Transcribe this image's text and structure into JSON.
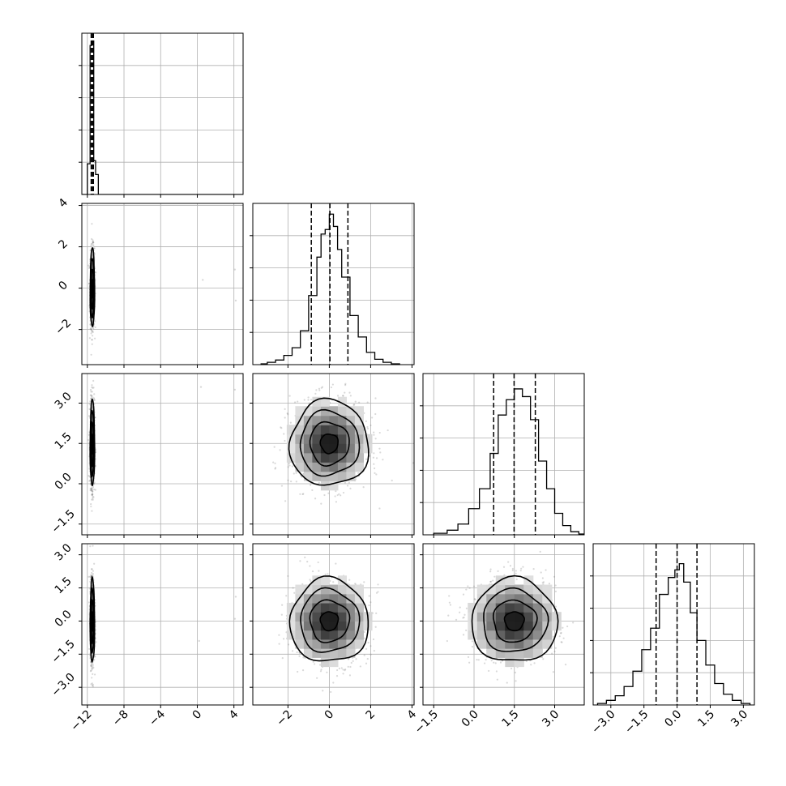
{
  "chart_data": {
    "type": "corner",
    "grid": true,
    "parameters": [
      {
        "range": [
          -12.6,
          5.0
        ],
        "ticks": [
          -12,
          -8,
          -4,
          0,
          4
        ],
        "tick_labels": [
          "−12",
          "−8",
          "−4",
          "0",
          "4"
        ],
        "mean": -11.45,
        "sigma": 0.12,
        "quantiles": [
          -11.58,
          -11.45,
          -11.34
        ],
        "hist_max": 0.99
      },
      {
        "range": [
          -3.7,
          4.1
        ],
        "ticks": [
          -2,
          0,
          2,
          4
        ],
        "tick_labels": [
          "−2",
          "0",
          "2",
          "4"
        ],
        "mean": 0.0,
        "sigma": 0.95,
        "quantiles": [
          -0.87,
          0.03,
          0.9
        ],
        "hist_max": 0.98
      },
      {
        "range": [
          -1.9,
          4.1
        ],
        "ticks": [
          -1.5,
          0.0,
          1.5,
          3.0
        ],
        "tick_labels": [
          "−1.5",
          "0.0",
          "1.5",
          "3.0"
        ],
        "mean": 1.5,
        "sigma": 0.8,
        "quantiles": [
          0.73,
          1.49,
          2.28
        ],
        "hist_max": 0.96
      },
      {
        "range": [
          -3.8,
          3.5
        ],
        "ticks": [
          -3.0,
          -1.5,
          0.0,
          1.5,
          3.0
        ],
        "tick_labels": [
          "−3.0",
          "−1.5",
          "0.0",
          "1.5",
          "3.0"
        ],
        "mean": 0.0,
        "sigma": 0.95,
        "quantiles": [
          -0.95,
          0.0,
          0.9
        ],
        "hist_max": 0.96
      }
    ],
    "histograms": [
      {
        "param": 0,
        "bins": [
          [
            -12.6,
            -12.0,
            0.0
          ],
          [
            -12.0,
            -11.7,
            0.2
          ],
          [
            -11.7,
            -11.5,
            0.97
          ],
          [
            -11.5,
            -11.3,
            1.0
          ],
          [
            -11.3,
            -11.1,
            0.22
          ],
          [
            -11.1,
            -10.8,
            0.13
          ],
          [
            -10.8,
            5.0,
            0.0
          ]
        ]
      },
      {
        "param": 1,
        "bins": [
          [
            -3.3,
            -3.0,
            0.005
          ],
          [
            -3.0,
            -2.6,
            0.015
          ],
          [
            -2.6,
            -2.2,
            0.03
          ],
          [
            -2.2,
            -1.8,
            0.06
          ],
          [
            -1.8,
            -1.4,
            0.11
          ],
          [
            -1.4,
            -1.0,
            0.22
          ],
          [
            -1.0,
            -0.6,
            0.45
          ],
          [
            -0.6,
            -0.4,
            0.7
          ],
          [
            -0.4,
            -0.2,
            0.85
          ],
          [
            -0.2,
            0.0,
            0.88
          ],
          [
            0.0,
            0.2,
            0.98
          ],
          [
            0.2,
            0.4,
            0.9
          ],
          [
            0.4,
            0.6,
            0.75
          ],
          [
            0.6,
            1.0,
            0.57
          ],
          [
            1.0,
            1.4,
            0.32
          ],
          [
            1.4,
            1.8,
            0.18
          ],
          [
            1.8,
            2.2,
            0.08
          ],
          [
            2.2,
            2.6,
            0.035
          ],
          [
            2.6,
            3.0,
            0.015
          ],
          [
            3.0,
            3.4,
            0.005
          ]
        ]
      },
      {
        "param": 2,
        "bins": [
          [
            -1.5,
            -1.0,
            0.01
          ],
          [
            -1.0,
            -0.6,
            0.03
          ],
          [
            -0.6,
            -0.2,
            0.07
          ],
          [
            -0.2,
            0.2,
            0.17
          ],
          [
            0.2,
            0.6,
            0.3
          ],
          [
            0.6,
            0.9,
            0.53
          ],
          [
            0.9,
            1.2,
            0.78
          ],
          [
            1.2,
            1.5,
            0.88
          ],
          [
            1.5,
            1.8,
            0.95
          ],
          [
            1.8,
            2.1,
            0.9
          ],
          [
            2.1,
            2.4,
            0.75
          ],
          [
            2.4,
            2.7,
            0.48
          ],
          [
            2.7,
            3.0,
            0.3
          ],
          [
            3.0,
            3.3,
            0.14
          ],
          [
            3.3,
            3.6,
            0.06
          ],
          [
            3.6,
            3.9,
            0.02
          ],
          [
            3.9,
            4.1,
            0.005
          ]
        ]
      },
      {
        "param": 3,
        "bins": [
          [
            -3.6,
            -3.2,
            0.01
          ],
          [
            -3.2,
            -2.8,
            0.03
          ],
          [
            -2.8,
            -2.4,
            0.06
          ],
          [
            -2.4,
            -2.0,
            0.12
          ],
          [
            -2.0,
            -1.6,
            0.22
          ],
          [
            -1.6,
            -1.2,
            0.36
          ],
          [
            -1.2,
            -0.8,
            0.5
          ],
          [
            -0.8,
            -0.4,
            0.72
          ],
          [
            -0.4,
            -0.1,
            0.83
          ],
          [
            -0.1,
            0.1,
            0.88
          ],
          [
            0.1,
            0.3,
            0.92
          ],
          [
            0.3,
            0.6,
            0.8
          ],
          [
            0.6,
            0.9,
            0.6
          ],
          [
            0.9,
            1.3,
            0.42
          ],
          [
            1.3,
            1.7,
            0.26
          ],
          [
            1.7,
            2.1,
            0.14
          ],
          [
            2.1,
            2.5,
            0.07
          ],
          [
            2.5,
            2.9,
            0.03
          ],
          [
            2.9,
            3.3,
            0.01
          ]
        ]
      }
    ],
    "contour_levels": [
      0.5,
      1.0,
      1.5,
      2.0
    ],
    "pairs": [
      {
        "x": 0,
        "y": 1,
        "center": [
          -11.45,
          0.0
        ],
        "spread": [
          0.12,
          0.95
        ]
      },
      {
        "x": 0,
        "y": 2,
        "center": [
          -11.45,
          1.5
        ],
        "spread": [
          0.12,
          0.8
        ]
      },
      {
        "x": 0,
        "y": 3,
        "center": [
          -11.45,
          0.0
        ],
        "spread": [
          0.12,
          0.95
        ]
      },
      {
        "x": 1,
        "y": 2,
        "center": [
          0.0,
          1.5
        ],
        "spread": [
          0.95,
          0.8
        ]
      },
      {
        "x": 1,
        "y": 3,
        "center": [
          0.0,
          0.0
        ],
        "spread": [
          0.95,
          0.95
        ]
      },
      {
        "x": 2,
        "y": 3,
        "center": [
          1.5,
          0.0
        ],
        "spread": [
          0.8,
          0.95
        ]
      }
    ],
    "outliers": [
      {
        "x": 0,
        "y": 1,
        "points": [
          [
            4.1,
            0.9
          ],
          [
            4.2,
            -0.6
          ],
          [
            0.6,
            0.4
          ]
        ]
      },
      {
        "x": 0,
        "y": 2,
        "points": [
          [
            4.1,
            3.5
          ],
          [
            0.4,
            3.6
          ]
        ]
      },
      {
        "x": 0,
        "y": 3,
        "points": [
          [
            4.1,
            0.1
          ],
          [
            4.2,
            1.1
          ],
          [
            0.2,
            -0.9
          ]
        ]
      }
    ]
  }
}
